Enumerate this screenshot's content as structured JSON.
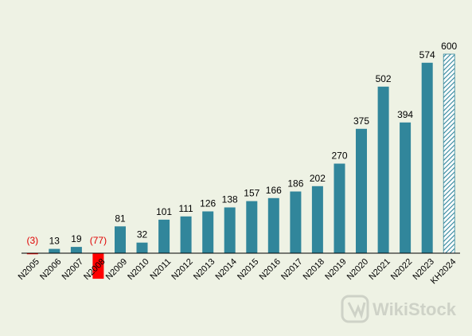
{
  "chart_data": {
    "type": "bar",
    "categories": [
      "N2005",
      "N2006",
      "N2007",
      "N2008",
      "N2009",
      "N2010",
      "N2011",
      "N2012",
      "N2013",
      "N2014",
      "N2015",
      "N2016",
      "N2017",
      "N2018",
      "N2019",
      "N2020",
      "N2021",
      "N2022",
      "N2023",
      "KH2024"
    ],
    "values": [
      -3,
      13,
      19,
      -77,
      81,
      32,
      101,
      111,
      126,
      138,
      157,
      166,
      186,
      202,
      270,
      375,
      502,
      394,
      574,
      600
    ],
    "labels": [
      "(3)",
      "13",
      "19",
      "(77)",
      "81",
      "32",
      "101",
      "111",
      "126",
      "138",
      "157",
      "166",
      "186",
      "202",
      "270",
      "375",
      "502",
      "394",
      "574",
      "600"
    ],
    "bar_styles": [
      "negative",
      "solid",
      "solid",
      "negative",
      "solid",
      "solid",
      "solid",
      "solid",
      "solid",
      "solid",
      "solid",
      "solid",
      "solid",
      "solid",
      "solid",
      "solid",
      "solid",
      "solid",
      "solid",
      "hatched"
    ],
    "title": "",
    "xlabel": "",
    "ylabel": "",
    "ylim": [
      -80,
      640
    ],
    "grid": false,
    "legend": "none"
  },
  "colors": {
    "background": "#eef2e4",
    "bar": "#31869b",
    "negative_bar": "#ff0000",
    "negative_label": "#e00000",
    "hatch": "#31869b",
    "axis": "#000000"
  },
  "watermark": {
    "icon": "wikistock-logo-icon",
    "text": "WikiStock"
  }
}
